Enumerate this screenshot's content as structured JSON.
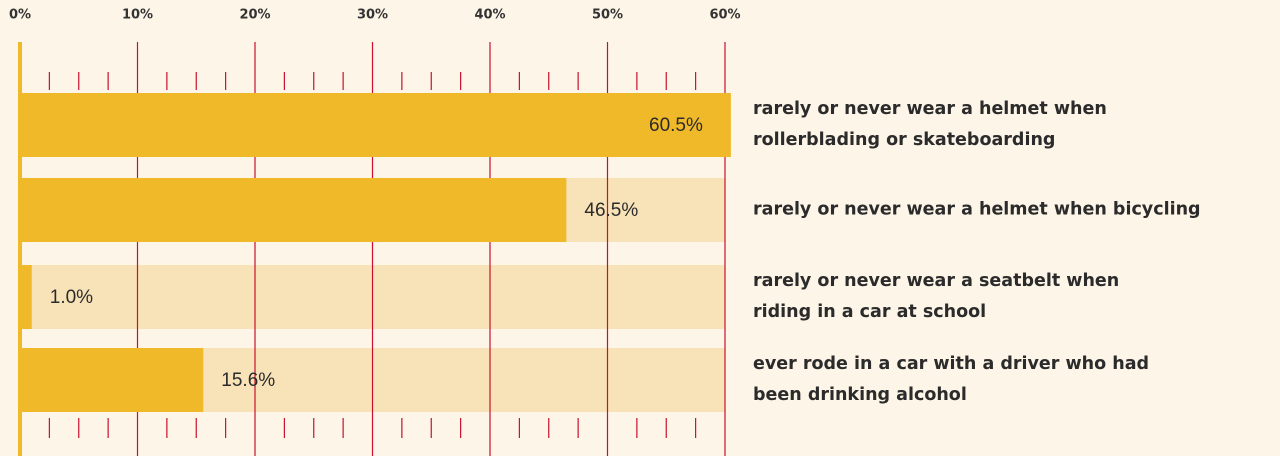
{
  "chart_data": {
    "type": "bar",
    "orientation": "horizontal",
    "categories": [
      "rarely or never wear a helmet when rollerblading or skateboarding",
      "rarely or never wear a helmet when bicycling",
      "rarely or never wear a seatbelt when riding in a car at school",
      "ever rode in a car with a driver who had been drinking alcohol"
    ],
    "values": [
      60.5,
      46.5,
      1.0,
      15.6
    ],
    "value_labels": [
      "60.5%",
      "46.5%",
      "1.0%",
      "15.6%"
    ],
    "color": "#f0b929",
    "track_color": "#f8e3b8",
    "grid_color": "#c8102e",
    "xlim": [
      0,
      60
    ],
    "xticks": [
      {
        "value": 0,
        "label": "0%"
      },
      {
        "value": 10,
        "label": "10%"
      },
      {
        "value": 20,
        "label": "20%"
      },
      {
        "value": 30,
        "label": "30%"
      },
      {
        "value": 40,
        "label": "40%"
      },
      {
        "value": 50,
        "label": "50%"
      },
      {
        "value": 60,
        "label": "60%"
      }
    ],
    "xminorticks": [
      2.5,
      5,
      7.5,
      12.5,
      15,
      17.5,
      22.5,
      25,
      27.5,
      32.5,
      35,
      37.5,
      42.5,
      45,
      47.5,
      52.5,
      55,
      57.5
    ],
    "grid": true
  }
}
